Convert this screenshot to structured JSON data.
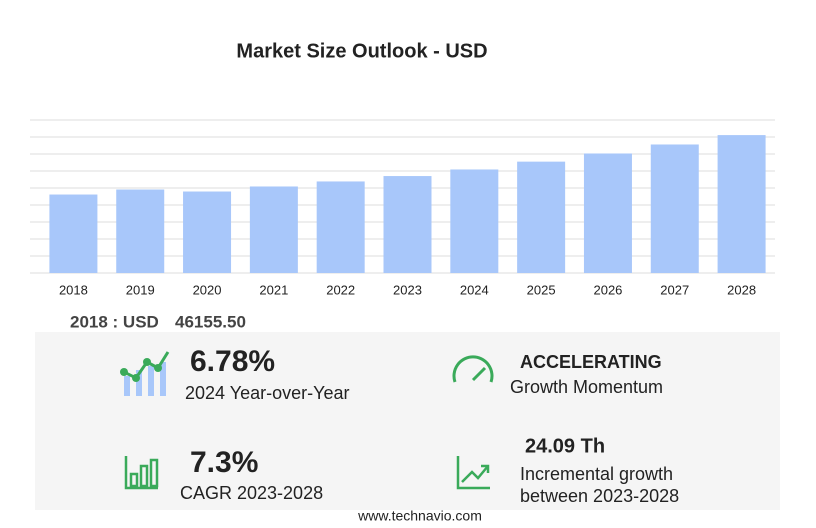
{
  "chart_data": {
    "type": "bar",
    "title": "Market Size Outlook  - USD",
    "categories": [
      "2018",
      "2019",
      "2020",
      "2021",
      "2022",
      "2023",
      "2024",
      "2025",
      "2026",
      "2027",
      "2028"
    ],
    "values": [
      46155.5,
      49110,
      47930,
      50890,
      53850,
      57030,
      60900,
      65500,
      70300,
      75600,
      81120
    ],
    "color": "#a8c7fa",
    "ylim": [
      0,
      90000
    ],
    "yticks": [
      0,
      10000,
      20000,
      30000,
      40000,
      50000,
      60000,
      70000,
      80000,
      90000
    ],
    "grid": true
  },
  "summary": {
    "base_label": "2018 : USD",
    "base_value": "46155.50",
    "yoy_value": "6.78%",
    "yoy_label": "2024 Year-over-Year",
    "momentum_value": "ACCELERATING",
    "momentum_label": "Growth Momentum",
    "cagr_value": "7.3%",
    "cagr_label": "CAGR 2023-2028",
    "incremental_value": "24.09 Th",
    "incremental_label_1": "Incremental growth",
    "incremental_label_2": "between 2023-2028"
  },
  "footer": "www.technavio.com"
}
